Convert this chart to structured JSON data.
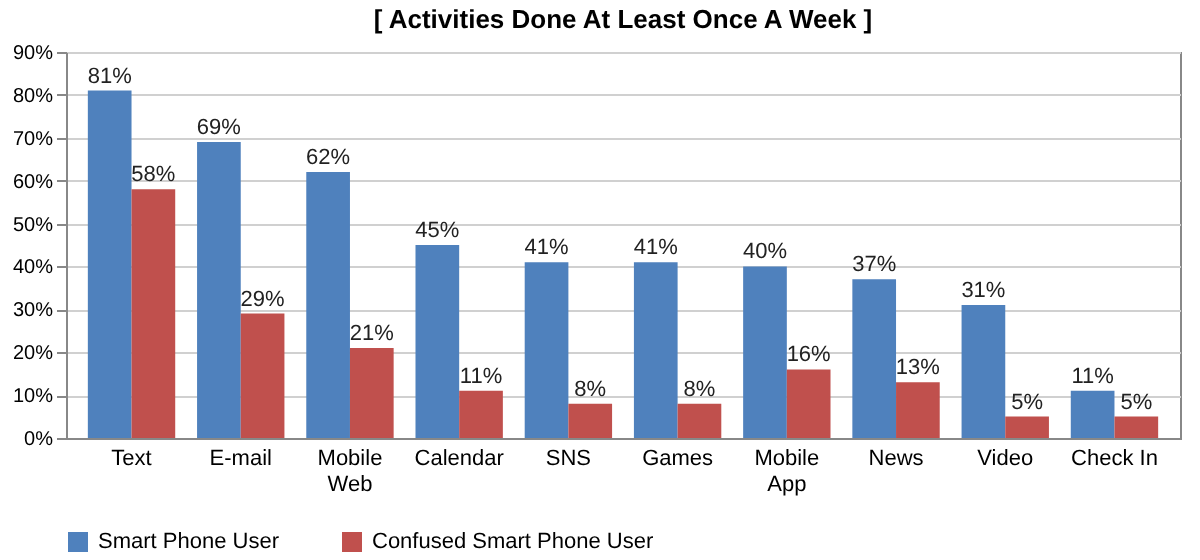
{
  "chart_data": {
    "type": "bar",
    "title": "[ Activities Done At Least Once A Week ]",
    "categories": [
      "Text",
      "E-mail",
      "Mobile Web",
      "Calendar",
      "SNS",
      "Games",
      "Mobile App",
      "News",
      "Video",
      "Check In"
    ],
    "series": [
      {
        "name": "Smart Phone User",
        "color": "#4f81bd",
        "values": [
          81,
          69,
          62,
          45,
          41,
          41,
          40,
          37,
          31,
          11
        ],
        "value_labels": [
          "81%",
          "69%",
          "62%",
          "45%",
          "41%",
          "41%",
          "40%",
          "37%",
          "31%",
          "11%"
        ]
      },
      {
        "name": "Confused Smart Phone User",
        "color": "#c0504d",
        "values": [
          58,
          29,
          21,
          11,
          8,
          8,
          16,
          13,
          5,
          5
        ],
        "value_labels": [
          "58%",
          "29%",
          "21%",
          "11%",
          "8%",
          "8%",
          "16%",
          "13%",
          "5%",
          "5%"
        ]
      }
    ],
    "ylim": [
      0,
      90
    ],
    "yticks": [
      {
        "value": 0,
        "label": "0%"
      },
      {
        "value": 10,
        "label": "10%"
      },
      {
        "value": 20,
        "label": "20%"
      },
      {
        "value": 30,
        "label": "30%"
      },
      {
        "value": 40,
        "label": "40%"
      },
      {
        "value": 50,
        "label": "50%"
      },
      {
        "value": 60,
        "label": "60%"
      },
      {
        "value": 70,
        "label": "70%"
      },
      {
        "value": 80,
        "label": "80%"
      },
      {
        "value": 90,
        "label": "90%"
      }
    ],
    "grid": "y",
    "legend": "bottom"
  }
}
